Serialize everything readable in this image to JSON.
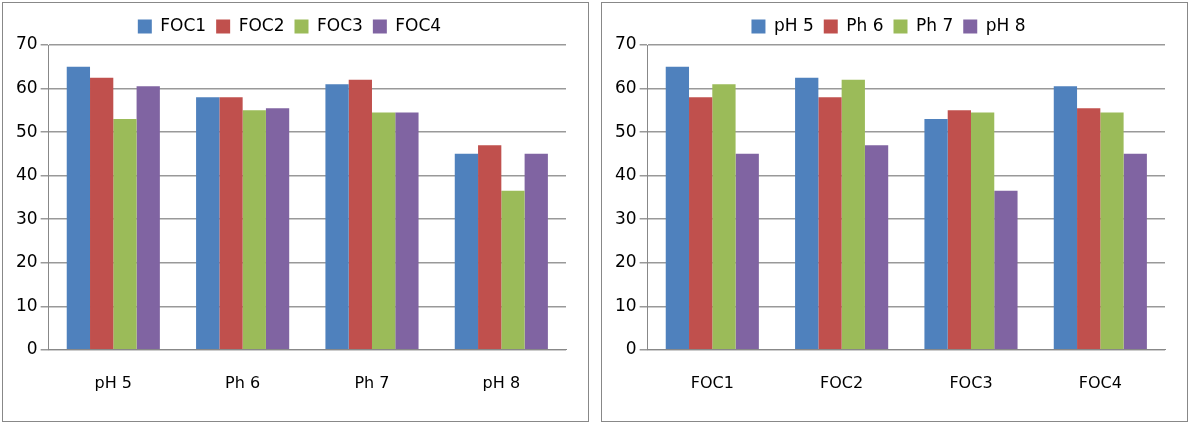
{
  "chart_data": [
    {
      "type": "bar",
      "categories": [
        "pH 5",
        "Ph 6",
        "Ph 7",
        "pH 8"
      ],
      "ylim": [
        0,
        70
      ],
      "yticks": [
        0,
        10,
        20,
        30,
        40,
        50,
        60,
        70
      ],
      "grid": "y",
      "legend": "top",
      "series": [
        {
          "name": "FOC1",
          "color": "#4f81bd",
          "values": [
            65,
            58,
            61,
            45
          ]
        },
        {
          "name": "FOC2",
          "color": "#c0504d",
          "values": [
            62.5,
            58,
            62,
            47
          ]
        },
        {
          "name": "FOC3",
          "color": "#9bbb59",
          "values": [
            53,
            55,
            54.5,
            36.5
          ]
        },
        {
          "name": "FOC4",
          "color": "#8064a2",
          "values": [
            60.5,
            55.5,
            54.5,
            45
          ]
        }
      ]
    },
    {
      "type": "bar",
      "categories": [
        "FOC1",
        "FOC2",
        "FOC3",
        "FOC4"
      ],
      "ylim": [
        0,
        70
      ],
      "yticks": [
        0,
        10,
        20,
        30,
        40,
        50,
        60,
        70
      ],
      "grid": "y",
      "legend": "top",
      "series": [
        {
          "name": "pH 5",
          "color": "#4f81bd",
          "values": [
            65,
            62.5,
            53,
            60.5
          ]
        },
        {
          "name": "Ph 6",
          "color": "#c0504d",
          "values": [
            58,
            58,
            55,
            55.5
          ]
        },
        {
          "name": "Ph 7",
          "color": "#9bbb59",
          "values": [
            61,
            62,
            54.5,
            54.5
          ]
        },
        {
          "name": "pH 8",
          "color": "#8064a2",
          "values": [
            45,
            47,
            36.5,
            45
          ]
        }
      ]
    }
  ]
}
